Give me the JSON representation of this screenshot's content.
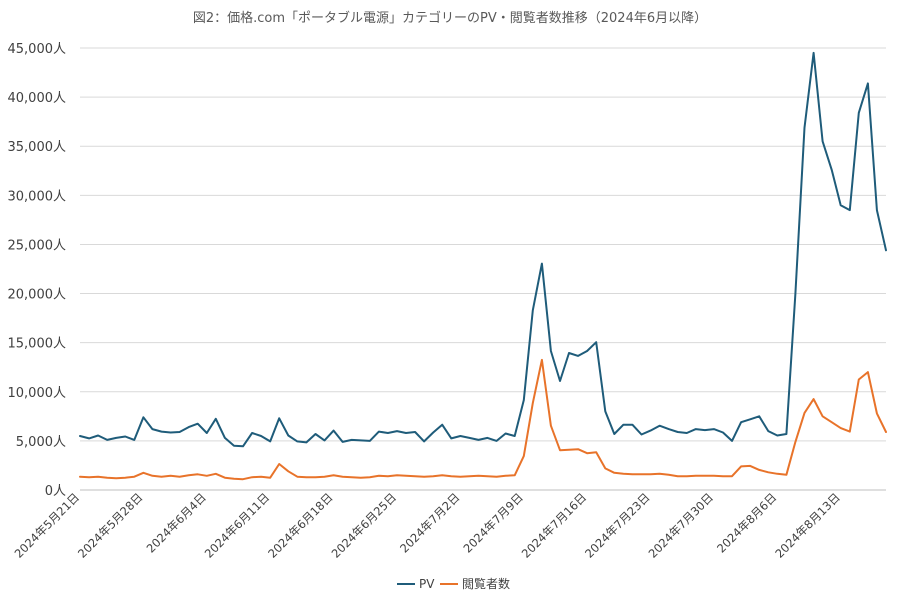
{
  "chart_data": {
    "type": "line",
    "title": "図2：価格.com「ポータブル電源」カテゴリーのPV・閲覧者数推移（2024年6月以降）",
    "xlabel": "",
    "ylabel": "",
    "ylim": [
      0,
      45000
    ],
    "yticks": [
      {
        "value": 0,
        "label": "0人"
      },
      {
        "value": 5000,
        "label": "5,000人"
      },
      {
        "value": 10000,
        "label": "10,000人"
      },
      {
        "value": 15000,
        "label": "15,000人"
      },
      {
        "value": 20000,
        "label": "20,000人"
      },
      {
        "value": 25000,
        "label": "25,000人"
      },
      {
        "value": 30000,
        "label": "30,000人"
      },
      {
        "value": 35000,
        "label": "35,000人"
      },
      {
        "value": 40000,
        "label": "40,000人"
      },
      {
        "value": 45000,
        "label": "45,000人"
      }
    ],
    "x_start_label": "2024年5月21日",
    "xticks": [
      {
        "index": 0,
        "label": "2024年5月21日"
      },
      {
        "index": 7,
        "label": "2024年5月28日"
      },
      {
        "index": 14,
        "label": "2024年6月4日"
      },
      {
        "index": 21,
        "label": "2024年6月11日"
      },
      {
        "index": 28,
        "label": "2024年6月18日"
      },
      {
        "index": 35,
        "label": "2024年6月25日"
      },
      {
        "index": 42,
        "label": "2024年7月2日"
      },
      {
        "index": 49,
        "label": "2024年7月9日"
      },
      {
        "index": 56,
        "label": "2024年7月16日"
      },
      {
        "index": 63,
        "label": "2024年7月23日"
      },
      {
        "index": 70,
        "label": "2024年7月30日"
      },
      {
        "index": 77,
        "label": "2024年8月6日"
      },
      {
        "index": 84,
        "label": "2024年8月13日"
      }
    ],
    "grid": true,
    "legend_position": "bottom",
    "series": [
      {
        "name": "PV",
        "color": "#1f5c7a",
        "values": [
          5500,
          5250,
          5550,
          5100,
          5300,
          5450,
          5100,
          7400,
          6200,
          5950,
          5850,
          5900,
          6400,
          6750,
          5800,
          7250,
          5300,
          4500,
          4450,
          5800,
          5500,
          4950,
          7300,
          5550,
          4950,
          4850,
          5700,
          5050,
          6050,
          4900,
          5100,
          5050,
          5000,
          5950,
          5800,
          6000,
          5800,
          5900,
          4950,
          5850,
          6650,
          5250,
          5500,
          5300,
          5100,
          5300,
          5000,
          5750,
          5500,
          9150,
          18300,
          23050,
          14150,
          11100,
          13950,
          13650,
          14150,
          15050,
          8000,
          5700,
          6650,
          6650,
          5650,
          6050,
          6550,
          6200,
          5900,
          5800,
          6200,
          6100,
          6200,
          5850,
          5000,
          6900,
          7200,
          7500,
          6000,
          5550,
          5700,
          20000,
          36900,
          44500,
          35500,
          32600,
          29000,
          28500,
          38400,
          41400,
          28500,
          24400
        ]
      },
      {
        "name": "閲覧者数",
        "color": "#e8732a",
        "values": [
          1350,
          1300,
          1350,
          1250,
          1200,
          1250,
          1350,
          1750,
          1450,
          1350,
          1450,
          1350,
          1500,
          1600,
          1450,
          1650,
          1250,
          1150,
          1100,
          1300,
          1350,
          1250,
          2650,
          1900,
          1350,
          1300,
          1300,
          1350,
          1500,
          1350,
          1300,
          1250,
          1300,
          1450,
          1400,
          1500,
          1450,
          1400,
          1350,
          1400,
          1500,
          1400,
          1350,
          1400,
          1450,
          1400,
          1350,
          1450,
          1500,
          3450,
          8850,
          13250,
          6550,
          4050,
          4100,
          4150,
          3750,
          3850,
          2200,
          1750,
          1650,
          1600,
          1600,
          1600,
          1650,
          1550,
          1400,
          1400,
          1450,
          1450,
          1450,
          1400,
          1400,
          2400,
          2450,
          2050,
          1800,
          1650,
          1550,
          4900,
          7850,
          9250,
          7500,
          6900,
          6300,
          5950,
          11250,
          12000,
          7800,
          5900
        ]
      }
    ]
  }
}
